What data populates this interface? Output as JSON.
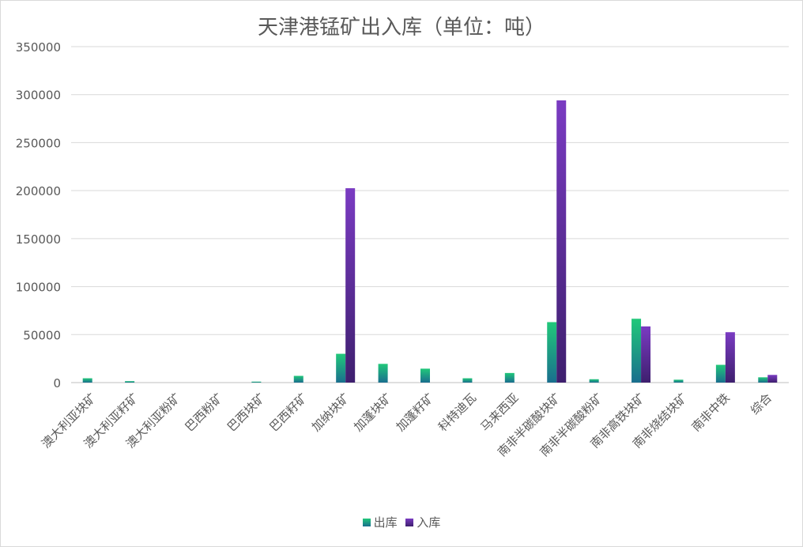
{
  "chart_data": {
    "type": "bar",
    "title": "天津港锰矿出入库（单位：吨）",
    "categories": [
      "澳大利亚块矿",
      "澳大利亚籽矿",
      "澳大利亚粉矿",
      "巴西粉矿",
      "巴西块矿",
      "巴西籽矿",
      "加纳块矿",
      "加蓬块矿",
      "加蓬籽矿",
      "科特迪瓦",
      "马来西亚",
      "南非半碳酸块矿",
      "南非半碳酸粉矿",
      "南非高铁块矿",
      "南非烧结块矿",
      "南非中铁",
      "综合"
    ],
    "series": [
      {
        "name": "出库",
        "color_top": "#21c87a",
        "color_bottom": "#1a6e8e",
        "values": [
          4500,
          1500,
          0,
          0,
          1000,
          7000,
          30000,
          19500,
          14500,
          4500,
          10000,
          63000,
          3500,
          66500,
          3000,
          18500,
          5500
        ]
      },
      {
        "name": "入库",
        "color_top": "#7a3bc2",
        "color_bottom": "#3e1f6e",
        "values": [
          0,
          0,
          0,
          0,
          0,
          0,
          202500,
          0,
          0,
          0,
          0,
          294000,
          0,
          58500,
          0,
          52500,
          8000
        ]
      }
    ],
    "ylim": [
      0,
      350000
    ],
    "yticks": [
      0,
      50000,
      100000,
      150000,
      200000,
      250000,
      300000,
      350000
    ],
    "grid": true,
    "legend": "bottom"
  }
}
